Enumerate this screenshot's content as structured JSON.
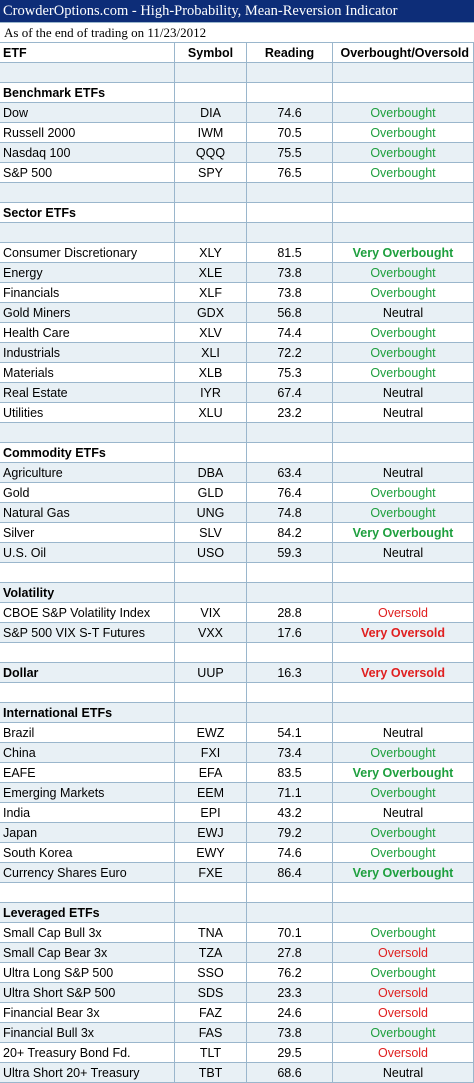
{
  "title": "CrowderOptions.com - High-Probability, Mean-Reversion Indicator",
  "subtitle": "As of the end of trading on 11/23/2012",
  "columns": [
    "ETF",
    "Symbol",
    "Reading",
    "Overbought/Oversold"
  ],
  "status_colors": {
    "overbought": "#1e9f3e",
    "oversold": "#e01f1f",
    "neutral": "#000000"
  },
  "rows": [
    {
      "kind": "blank"
    },
    {
      "kind": "section",
      "label": "Benchmark ETFs"
    },
    {
      "kind": "data",
      "name": "Dow",
      "symbol": "DIA",
      "reading": "74.6",
      "status": "Overbought",
      "cls": "ob"
    },
    {
      "kind": "data",
      "name": "Russell 2000",
      "symbol": "IWM",
      "reading": "70.5",
      "status": "Overbought",
      "cls": "ob"
    },
    {
      "kind": "data",
      "name": "Nasdaq 100",
      "symbol": "QQQ",
      "reading": "75.5",
      "status": "Overbought",
      "cls": "ob"
    },
    {
      "kind": "data",
      "name": "S&P 500",
      "symbol": "SPY",
      "reading": "76.5",
      "status": "Overbought",
      "cls": "ob"
    },
    {
      "kind": "blank"
    },
    {
      "kind": "section",
      "label": "Sector ETFs"
    },
    {
      "kind": "blank"
    },
    {
      "kind": "data",
      "name": "Consumer Discretionary",
      "symbol": "XLY",
      "reading": "81.5",
      "status": "Very Overbought",
      "cls": "vob"
    },
    {
      "kind": "data",
      "name": "Energy",
      "symbol": "XLE",
      "reading": "73.8",
      "status": "Overbought",
      "cls": "ob"
    },
    {
      "kind": "data",
      "name": "Financials",
      "symbol": "XLF",
      "reading": "73.8",
      "status": "Overbought",
      "cls": "ob"
    },
    {
      "kind": "data",
      "name": "Gold Miners",
      "symbol": "GDX",
      "reading": "56.8",
      "status": "Neutral",
      "cls": "neu"
    },
    {
      "kind": "data",
      "name": "Health Care",
      "symbol": "XLV",
      "reading": "74.4",
      "status": "Overbought",
      "cls": "ob"
    },
    {
      "kind": "data",
      "name": "Industrials",
      "symbol": "XLI",
      "reading": "72.2",
      "status": "Overbought",
      "cls": "ob"
    },
    {
      "kind": "data",
      "name": "Materials",
      "symbol": "XLB",
      "reading": "75.3",
      "status": "Overbought",
      "cls": "ob"
    },
    {
      "kind": "data",
      "name": "Real Estate",
      "symbol": "IYR",
      "reading": "67.4",
      "status": "Neutral",
      "cls": "neu"
    },
    {
      "kind": "data",
      "name": "Utilities",
      "symbol": "XLU",
      "reading": "23.2",
      "status": "Neutral",
      "cls": "neu"
    },
    {
      "kind": "blank"
    },
    {
      "kind": "section",
      "label": "Commodity ETFs"
    },
    {
      "kind": "data",
      "name": "Agriculture",
      "symbol": "DBA",
      "reading": "63.4",
      "status": "Neutral",
      "cls": "neu"
    },
    {
      "kind": "data",
      "name": "Gold",
      "symbol": "GLD",
      "reading": "76.4",
      "status": "Overbought",
      "cls": "ob"
    },
    {
      "kind": "data",
      "name": "Natural Gas",
      "symbol": "UNG",
      "reading": "74.8",
      "status": "Overbought",
      "cls": "ob"
    },
    {
      "kind": "data",
      "name": "Silver",
      "symbol": "SLV",
      "reading": "84.2",
      "status": "Very Overbought",
      "cls": "vob"
    },
    {
      "kind": "data",
      "name": "U.S. Oil",
      "symbol": "USO",
      "reading": "59.3",
      "status": "Neutral",
      "cls": "neu"
    },
    {
      "kind": "blank"
    },
    {
      "kind": "section",
      "label": "Volatility"
    },
    {
      "kind": "data",
      "name": "CBOE S&P Volatility Index",
      "symbol": "VIX",
      "reading": "28.8",
      "status": "Oversold",
      "cls": "os"
    },
    {
      "kind": "data",
      "name": "S&P 500 VIX S-T Futures",
      "symbol": "VXX",
      "reading": "17.6",
      "status": "Very Oversold",
      "cls": "vos"
    },
    {
      "kind": "blank"
    },
    {
      "kind": "data",
      "name": "Dollar",
      "symbol": "UUP",
      "reading": "16.3",
      "status": "Very Oversold",
      "cls": "vos",
      "bold_name": true
    },
    {
      "kind": "blank"
    },
    {
      "kind": "section",
      "label": "International ETFs"
    },
    {
      "kind": "data",
      "name": "Brazil",
      "symbol": "EWZ",
      "reading": "54.1",
      "status": "Neutral",
      "cls": "neu"
    },
    {
      "kind": "data",
      "name": "China",
      "symbol": "FXI",
      "reading": "73.4",
      "status": "Overbought",
      "cls": "ob"
    },
    {
      "kind": "data",
      "name": "EAFE",
      "symbol": "EFA",
      "reading": "83.5",
      "status": "Very Overbought",
      "cls": "vob"
    },
    {
      "kind": "data",
      "name": "Emerging Markets",
      "symbol": "EEM",
      "reading": "71.1",
      "status": "Overbought",
      "cls": "ob"
    },
    {
      "kind": "data",
      "name": "India",
      "symbol": "EPI",
      "reading": "43.2",
      "status": "Neutral",
      "cls": "neu"
    },
    {
      "kind": "data",
      "name": "Japan",
      "symbol": "EWJ",
      "reading": "79.2",
      "status": "Overbought",
      "cls": "ob"
    },
    {
      "kind": "data",
      "name": "South Korea",
      "symbol": "EWY",
      "reading": "74.6",
      "status": "Overbought",
      "cls": "ob"
    },
    {
      "kind": "data",
      "name": "Currency Shares Euro",
      "symbol": "FXE",
      "reading": "86.4",
      "status": "Very Overbought",
      "cls": "vob"
    },
    {
      "kind": "blank"
    },
    {
      "kind": "section",
      "label": "Leveraged ETFs"
    },
    {
      "kind": "data",
      "name": "Small Cap Bull 3x",
      "symbol": "TNA",
      "reading": "70.1",
      "status": "Overbought",
      "cls": "ob"
    },
    {
      "kind": "data",
      "name": "Small Cap Bear 3x",
      "symbol": "TZA",
      "reading": "27.8",
      "status": "Oversold",
      "cls": "os"
    },
    {
      "kind": "data",
      "name": "Ultra Long S&P 500",
      "symbol": "SSO",
      "reading": "76.2",
      "status": "Overbought",
      "cls": "ob"
    },
    {
      "kind": "data",
      "name": "Ultra Short S&P 500",
      "symbol": "SDS",
      "reading": "23.3",
      "status": "Oversold",
      "cls": "os"
    },
    {
      "kind": "data",
      "name": "Financial Bear 3x",
      "symbol": "FAZ",
      "reading": "24.6",
      "status": "Oversold",
      "cls": "os"
    },
    {
      "kind": "data",
      "name": "Financial Bull 3x",
      "symbol": "FAS",
      "reading": "73.8",
      "status": "Overbought",
      "cls": "ob"
    },
    {
      "kind": "data",
      "name": "20+ Treasury Bond Fd.",
      "symbol": "TLT",
      "reading": "29.5",
      "status": "Oversold",
      "cls": "os"
    },
    {
      "kind": "data",
      "name": "Ultra Short 20+ Treasury",
      "symbol": "TBT",
      "reading": "68.6",
      "status": "Neutral",
      "cls": "neu"
    }
  ]
}
